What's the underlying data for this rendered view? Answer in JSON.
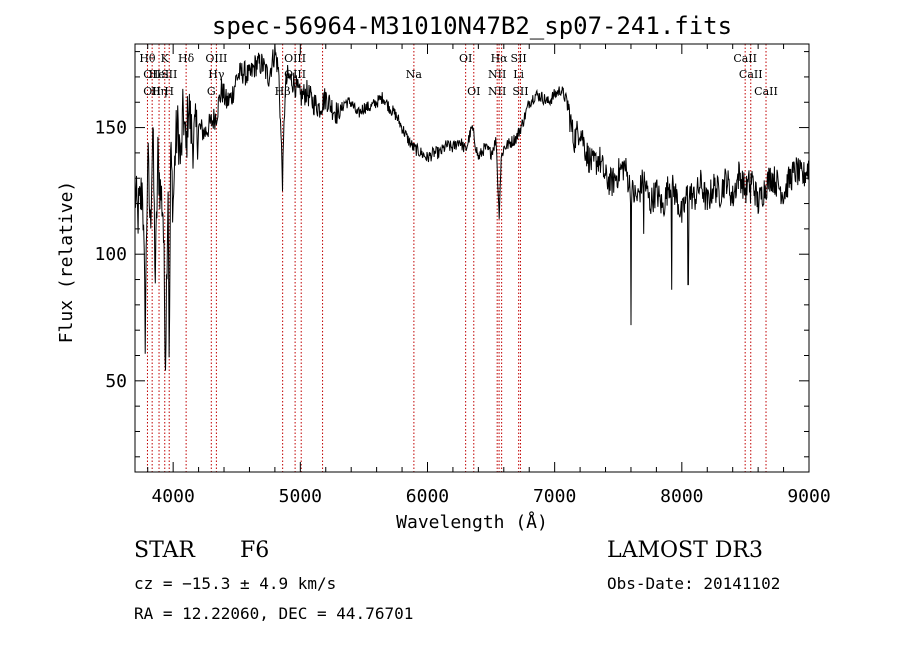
{
  "chart_data": {
    "type": "line",
    "title": "spec-56964-M31010N47B2_sp07-241.fits",
    "xlabel": "Wavelength (Å)",
    "ylabel": "Flux (relative)",
    "xlim": [
      3700,
      9000
    ],
    "ylim": [
      14,
      183
    ],
    "x_ticks": [
      4000,
      5000,
      6000,
      7000,
      8000,
      9000
    ],
    "x_tick_labels": [
      "4000",
      "5000",
      "6000",
      "7000",
      "8000",
      "9000"
    ],
    "y_ticks": [
      50,
      100,
      150
    ],
    "y_tick_labels": [
      "50",
      "100",
      "150"
    ],
    "grid": false,
    "line_color": "#000000",
    "marker_color": "#c00000",
    "spectrum": {
      "x": [
        3700,
        3720,
        3740,
        3760,
        3780,
        3800,
        3820,
        3840,
        3860,
        3880,
        3900,
        3920,
        3940,
        3960,
        3970,
        3980,
        4000,
        4020,
        4040,
        4060,
        4080,
        4100,
        4120,
        4150,
        4200,
        4250,
        4300,
        4340,
        4380,
        4420,
        4460,
        4500,
        4550,
        4600,
        4650,
        4700,
        4750,
        4800,
        4830,
        4861,
        4880,
        4900,
        4950,
        5000,
        5050,
        5100,
        5150,
        5200,
        5250,
        5300,
        5350,
        5400,
        5450,
        5500,
        5550,
        5600,
        5650,
        5700,
        5750,
        5800,
        5850,
        5890,
        5950,
        6000,
        6050,
        6100,
        6150,
        6200,
        6250,
        6300,
        6350,
        6400,
        6450,
        6500,
        6540,
        6563,
        6580,
        6600,
        6650,
        6700,
        6750,
        6800,
        6850,
        6900,
        6950,
        7000,
        7050,
        7100,
        7150,
        7200,
        7250,
        7300,
        7350,
        7400,
        7450,
        7500,
        7550,
        7600,
        7650,
        7700,
        7750,
        7800,
        7850,
        7900,
        7950,
        8000,
        8050,
        8100,
        8150,
        8200,
        8250,
        8300,
        8350,
        8400,
        8450,
        8500,
        8550,
        8600,
        8650,
        8700,
        8750,
        8800,
        8850,
        8900,
        8950,
        9000
      ],
      "y": [
        125,
        115,
        120,
        128,
        70,
        140,
        110,
        150,
        90,
        138,
        125,
        118,
        60,
        130,
        50,
        140,
        120,
        145,
        150,
        135,
        158,
        140,
        160,
        145,
        150,
        148,
        152,
        155,
        165,
        160,
        162,
        170,
        172,
        170,
        175,
        175,
        170,
        180,
        172,
        128,
        165,
        170,
        168,
        162,
        164,
        160,
        158,
        162,
        158,
        155,
        160,
        160,
        155,
        158,
        158,
        160,
        162,
        158,
        155,
        150,
        145,
        142,
        140,
        138,
        140,
        140,
        143,
        142,
        145,
        141,
        150,
        138,
        142,
        140,
        145,
        115,
        138,
        142,
        144,
        146,
        152,
        160,
        163,
        162,
        160,
        163,
        165,
        160,
        145,
        150,
        140,
        135,
        138,
        130,
        128,
        132,
        135,
        125,
        122,
        130,
        120,
        125,
        118,
        128,
        124,
        115,
        125,
        122,
        128,
        120,
        127,
        124,
        130,
        122,
        132,
        125,
        130,
        120,
        126,
        131,
        128,
        124,
        130,
        133,
        130,
        135
      ],
      "dips": [
        {
          "x": 7600,
          "y": 72
        },
        {
          "x": 7700,
          "y": 108
        },
        {
          "x": 7920,
          "y": 86
        },
        {
          "x": 8050,
          "y": 88
        },
        {
          "x": 8540,
          "y": 120
        },
        {
          "x": 8660,
          "y": 122
        }
      ]
    },
    "line_markers": [
      {
        "x": 3798,
        "labels": [
          {
            "text": "Hθ",
            "row": 0
          }
        ]
      },
      {
        "x": 3835,
        "labels": [
          {
            "text": "OII",
            "row": 1
          },
          {
            "text": "OII",
            "row": 2
          }
        ]
      },
      {
        "x": 3889,
        "labels": [
          {
            "text": "HeI",
            "row": 1
          },
          {
            "text": "Hη",
            "row": 2
          }
        ]
      },
      {
        "x": 3934,
        "labels": [
          {
            "text": "K",
            "row": 0
          }
        ]
      },
      {
        "x": 3969,
        "labels": [
          {
            "text": "SII",
            "row": 1
          },
          {
            "text": "H",
            "row": 2
          }
        ]
      },
      {
        "x": 4102,
        "labels": [
          {
            "text": "Hδ",
            "row": 0
          }
        ]
      },
      {
        "x": 4300,
        "labels": [
          {
            "text": "G",
            "row": 2
          }
        ]
      },
      {
        "x": 4340,
        "labels": [
          {
            "text": "OIII",
            "row": 0
          },
          {
            "text": "Hγ",
            "row": 1
          }
        ]
      },
      {
        "x": 4861,
        "labels": [
          {
            "text": "Hβ",
            "row": 2
          }
        ]
      },
      {
        "x": 4959,
        "labels": [
          {
            "text": "OIII",
            "row": 0
          },
          {
            "text": "OIII",
            "row": 1
          }
        ]
      },
      {
        "x": 5007,
        "labels": []
      },
      {
        "x": 5175,
        "labels": []
      },
      {
        "x": 5893,
        "labels": [
          {
            "text": "Na",
            "row": 1
          }
        ]
      },
      {
        "x": 6300,
        "labels": [
          {
            "text": "OI",
            "row": 0
          }
        ]
      },
      {
        "x": 6364,
        "labels": [
          {
            "text": "OI",
            "row": 2
          }
        ]
      },
      {
        "x": 6548,
        "labels": [
          {
            "text": "NII",
            "row": 1
          },
          {
            "text": "NII",
            "row": 2
          }
        ]
      },
      {
        "x": 6563,
        "labels": [
          {
            "text": "Hα",
            "row": 0
          }
        ]
      },
      {
        "x": 6583,
        "labels": []
      },
      {
        "x": 6717,
        "labels": [
          {
            "text": "SII",
            "row": 0
          },
          {
            "text": "Li",
            "row": 1
          }
        ]
      },
      {
        "x": 6731,
        "labels": [
          {
            "text": "SII",
            "row": 2
          }
        ]
      },
      {
        "x": 8498,
        "labels": [
          {
            "text": "CaII",
            "row": 0
          }
        ]
      },
      {
        "x": 8542,
        "labels": [
          {
            "text": "CaII",
            "row": 1
          }
        ]
      },
      {
        "x": 8662,
        "labels": [
          {
            "text": "CaII",
            "row": 2
          }
        ]
      }
    ]
  },
  "info": {
    "object_type": "STAR",
    "subclass": "F6",
    "survey": "LAMOST DR3",
    "cz": "cz = −15.3 ± 4.9 km/s",
    "obs_date": "Obs-Date: 20141102",
    "coords": "RA =  12.22060, DEC =  44.76701"
  }
}
